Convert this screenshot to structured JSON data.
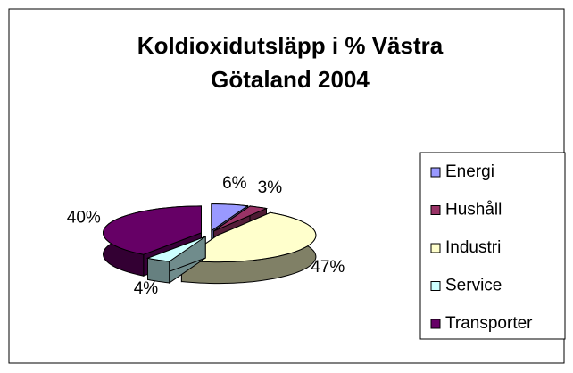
{
  "chart_data": {
    "type": "pie3d",
    "title": "Koldioxidutsläpp i % Västra Götaland 2004",
    "categories": [
      "Energi",
      "Hushåll",
      "Industri",
      "Service",
      "Transporter"
    ],
    "values": [
      6,
      3,
      47,
      4,
      40
    ],
    "value_labels": [
      "6%",
      "3%",
      "47%",
      "4%",
      "40%"
    ],
    "colors": [
      "#9999FF",
      "#993366",
      "#FFFFCC",
      "#CCFFFF",
      "#660066"
    ],
    "legend": "right"
  }
}
